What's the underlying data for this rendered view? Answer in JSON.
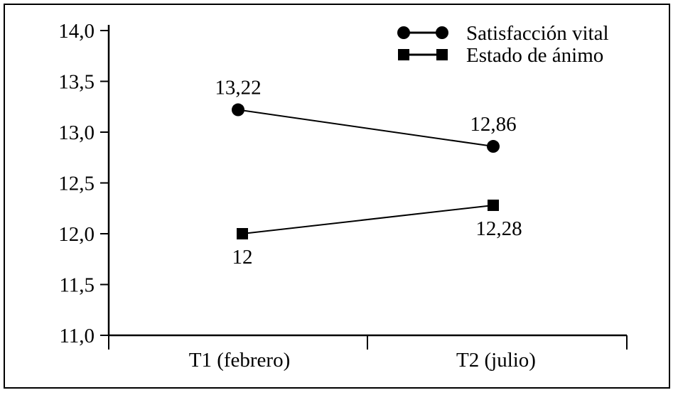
{
  "chart_data": {
    "type": "line",
    "categories": [
      "T1 (febrero)",
      "T2 (julio)"
    ],
    "ylim": [
      11.0,
      14.0
    ],
    "yticks": [
      "11,0",
      "11,5",
      "12,0",
      "12,5",
      "13,0",
      "13,5",
      "14,0"
    ],
    "ytick_values": [
      11.0,
      11.5,
      12.0,
      12.5,
      13.0,
      13.5,
      14.0
    ],
    "legend_position": "top-right",
    "grid": false,
    "series": [
      {
        "name": "Satisfacción vital",
        "marker": "circle",
        "values": [
          13.22,
          12.86
        ],
        "labels": [
          "13,22",
          "12,86"
        ],
        "label_position": [
          "above",
          "above"
        ]
      },
      {
        "name": "Estado de ánimo",
        "marker": "square",
        "values": [
          12.0,
          12.28
        ],
        "labels": [
          "12",
          "12,28"
        ],
        "label_position": [
          "below",
          "below"
        ]
      }
    ]
  }
}
